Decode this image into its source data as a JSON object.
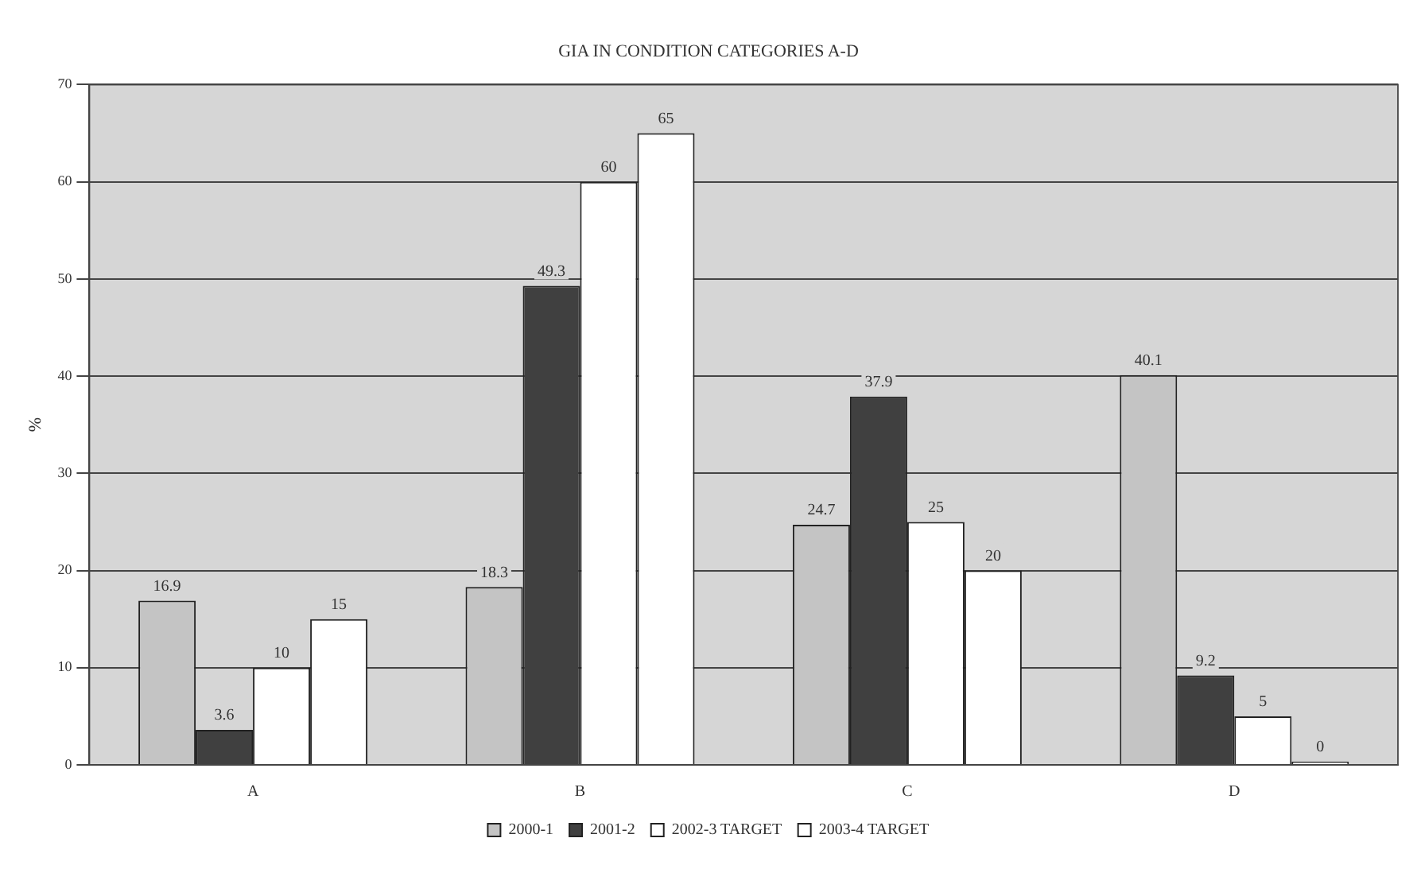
{
  "chart_data": {
    "type": "bar",
    "title": "GIA IN CONDITION CATEGORIES A-D",
    "ylabel": "%",
    "categories": [
      "A",
      "B",
      "C",
      "D"
    ],
    "series": [
      {
        "name": "2000-1",
        "color": "#c4c4c4",
        "values": [
          16.9,
          18.3,
          24.7,
          40.1
        ]
      },
      {
        "name": "2001-2",
        "color": "#404040",
        "values": [
          3.6,
          49.3,
          37.9,
          9.2
        ]
      },
      {
        "name": "2002-3 TARGET",
        "color": "#ffffff",
        "values": [
          10,
          60,
          25,
          5
        ]
      },
      {
        "name": "2003-4 TARGET",
        "color": "#ffffff",
        "values": [
          15,
          65,
          20,
          0
        ]
      }
    ],
    "ylim": [
      0,
      70
    ],
    "yticks": [
      0,
      10,
      20,
      30,
      40,
      50,
      60,
      70
    ],
    "grid": "y",
    "legend": "bottom",
    "data_labels": true
  }
}
